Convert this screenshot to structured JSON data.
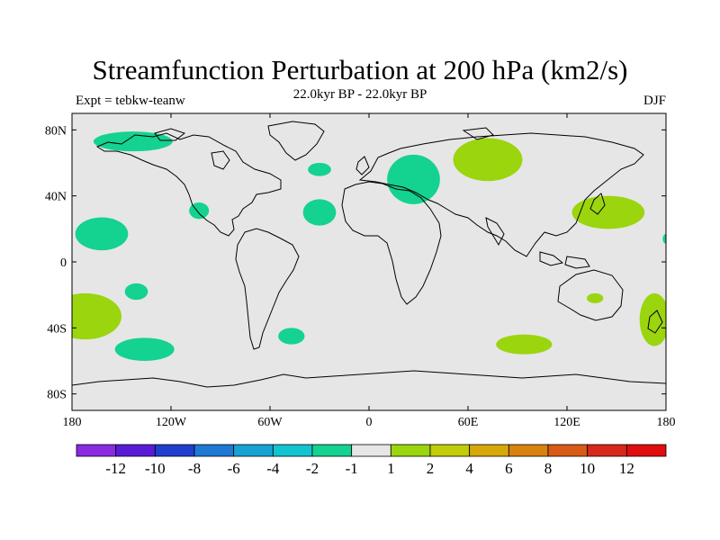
{
  "chart_data": {
    "type": "heatmap",
    "title": "Streamfunction Perturbation at 200 hPa (km2/s)",
    "subtitle": "22.0kyr BP - 22.0kyr BP",
    "left_label": "Expt = tebkw-teanw",
    "right_label": "DJF",
    "x_range": [
      -180,
      180
    ],
    "y_range": [
      -90,
      90
    ],
    "x_ticks": [
      {
        "value": -180,
        "label": "180"
      },
      {
        "value": -120,
        "label": "120W"
      },
      {
        "value": -60,
        "label": "60W"
      },
      {
        "value": 0,
        "label": "0"
      },
      {
        "value": 60,
        "label": "60E"
      },
      {
        "value": 120,
        "label": "120E"
      },
      {
        "value": 180,
        "label": "180"
      }
    ],
    "y_ticks": [
      {
        "value": 80,
        "label": "80N"
      },
      {
        "value": 40,
        "label": "40N"
      },
      {
        "value": 0,
        "label": "0"
      },
      {
        "value": -40,
        "label": "40S"
      },
      {
        "value": -80,
        "label": "80S"
      }
    ],
    "colorbar": {
      "colors": [
        "#8a2be2",
        "#5a1bd8",
        "#1e3fd0",
        "#1e78d4",
        "#16a3d4",
        "#12c4d0",
        "#14d28f",
        "#e6e6e6",
        "#9ad50e",
        "#c2cc08",
        "#d6a80a",
        "#d88210",
        "#d85a16",
        "#d8281c",
        "#e00e0e"
      ],
      "labels": [
        "-12",
        "-10",
        "-8",
        "-6",
        "-4",
        "-2",
        "-1",
        "1",
        "2",
        "4",
        "6",
        "8",
        "10",
        "12"
      ]
    },
    "anomalies": [
      {
        "lon": -143,
        "lat": 73,
        "rx": 24,
        "ry": 6,
        "value": -1.5
      },
      {
        "lon": 27,
        "lat": 50,
        "rx": 16,
        "ry": 15,
        "value": -1.5
      },
      {
        "lon": -30,
        "lat": 56,
        "rx": 7,
        "ry": 4,
        "value": -1.5
      },
      {
        "lon": -103,
        "lat": 31,
        "rx": 6,
        "ry": 5,
        "value": -1.5
      },
      {
        "lon": -30,
        "lat": 30,
        "rx": 10,
        "ry": 8,
        "value": -1.5
      },
      {
        "lon": -162,
        "lat": 17,
        "rx": 16,
        "ry": 10,
        "value": -1.5
      },
      {
        "lon": -141,
        "lat": -18,
        "rx": 7,
        "ry": 5,
        "value": -1.5
      },
      {
        "lon": -47,
        "lat": -45,
        "rx": 8,
        "ry": 5,
        "value": -1.5
      },
      {
        "lon": -136,
        "lat": -53,
        "rx": 18,
        "ry": 7,
        "value": -1.5
      },
      {
        "lon": 72,
        "lat": 62,
        "rx": 21,
        "ry": 13,
        "value": 1.5
      },
      {
        "lon": 145,
        "lat": 30,
        "rx": 22,
        "ry": 10,
        "value": 1.5
      },
      {
        "lon": 137,
        "lat": -22,
        "rx": 5,
        "ry": 3,
        "value": 1.5
      },
      {
        "lon": 94,
        "lat": -50,
        "rx": 17,
        "ry": 6,
        "value": 1.5
      },
      {
        "lon": -172,
        "lat": -33,
        "rx": 22,
        "ry": 14,
        "value": 1.5
      },
      {
        "lon": 173,
        "lat": -35,
        "rx": 9,
        "ry": 16,
        "value": 1.5
      },
      {
        "lon": 180,
        "lat": 14,
        "rx": 2,
        "ry": 3,
        "value": -1.5
      }
    ]
  }
}
